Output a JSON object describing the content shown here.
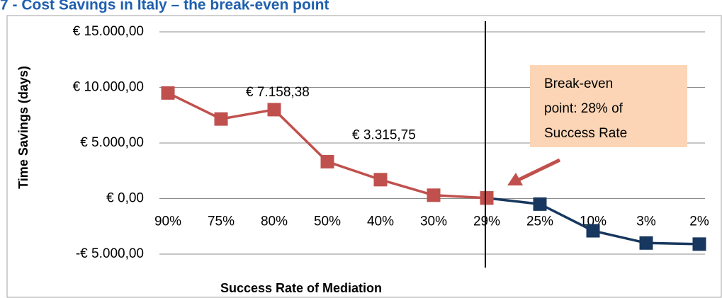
{
  "chart_data": {
    "type": "line",
    "title": "7 - Cost Savings in Italy – the break-even point",
    "y_label": "Time Savings (days)",
    "x_label": "Success Rate of Mediation",
    "categories": [
      "90%",
      "75%",
      "80%",
      "50%",
      "40%",
      "30%",
      "29%",
      "25%",
      "10%",
      "3%",
      "2%"
    ],
    "series": [
      {
        "color": "#c0504d",
        "values": [
          9500,
          7158.38,
          8000,
          3315.75,
          1700,
          300,
          50,
          null,
          null,
          null,
          null
        ],
        "value_labels": [
          null,
          "€ 7.158,38",
          null,
          "€ 3.315,75",
          null,
          null,
          null,
          null,
          null,
          null,
          null
        ]
      },
      {
        "color": "#17375e",
        "values": [
          null,
          null,
          null,
          null,
          null,
          null,
          50,
          -500,
          -2900,
          -4000,
          -4100
        ]
      }
    ],
    "ylim": [
      -5000,
      15000
    ],
    "yticks": [
      {
        "value": -5000,
        "label": "-€ 5.000,00"
      },
      {
        "value": 0,
        "label": "€ 0,00"
      },
      {
        "value": 5000,
        "label": "€ 5.000,00"
      },
      {
        "value": 10000,
        "label": "€ 10.000,00"
      },
      {
        "value": 15000,
        "label": "€ 15.000,00"
      }
    ],
    "grid": true,
    "annotation": [
      "Break-even",
      "point: 28% of",
      "Success Rate"
    ]
  }
}
